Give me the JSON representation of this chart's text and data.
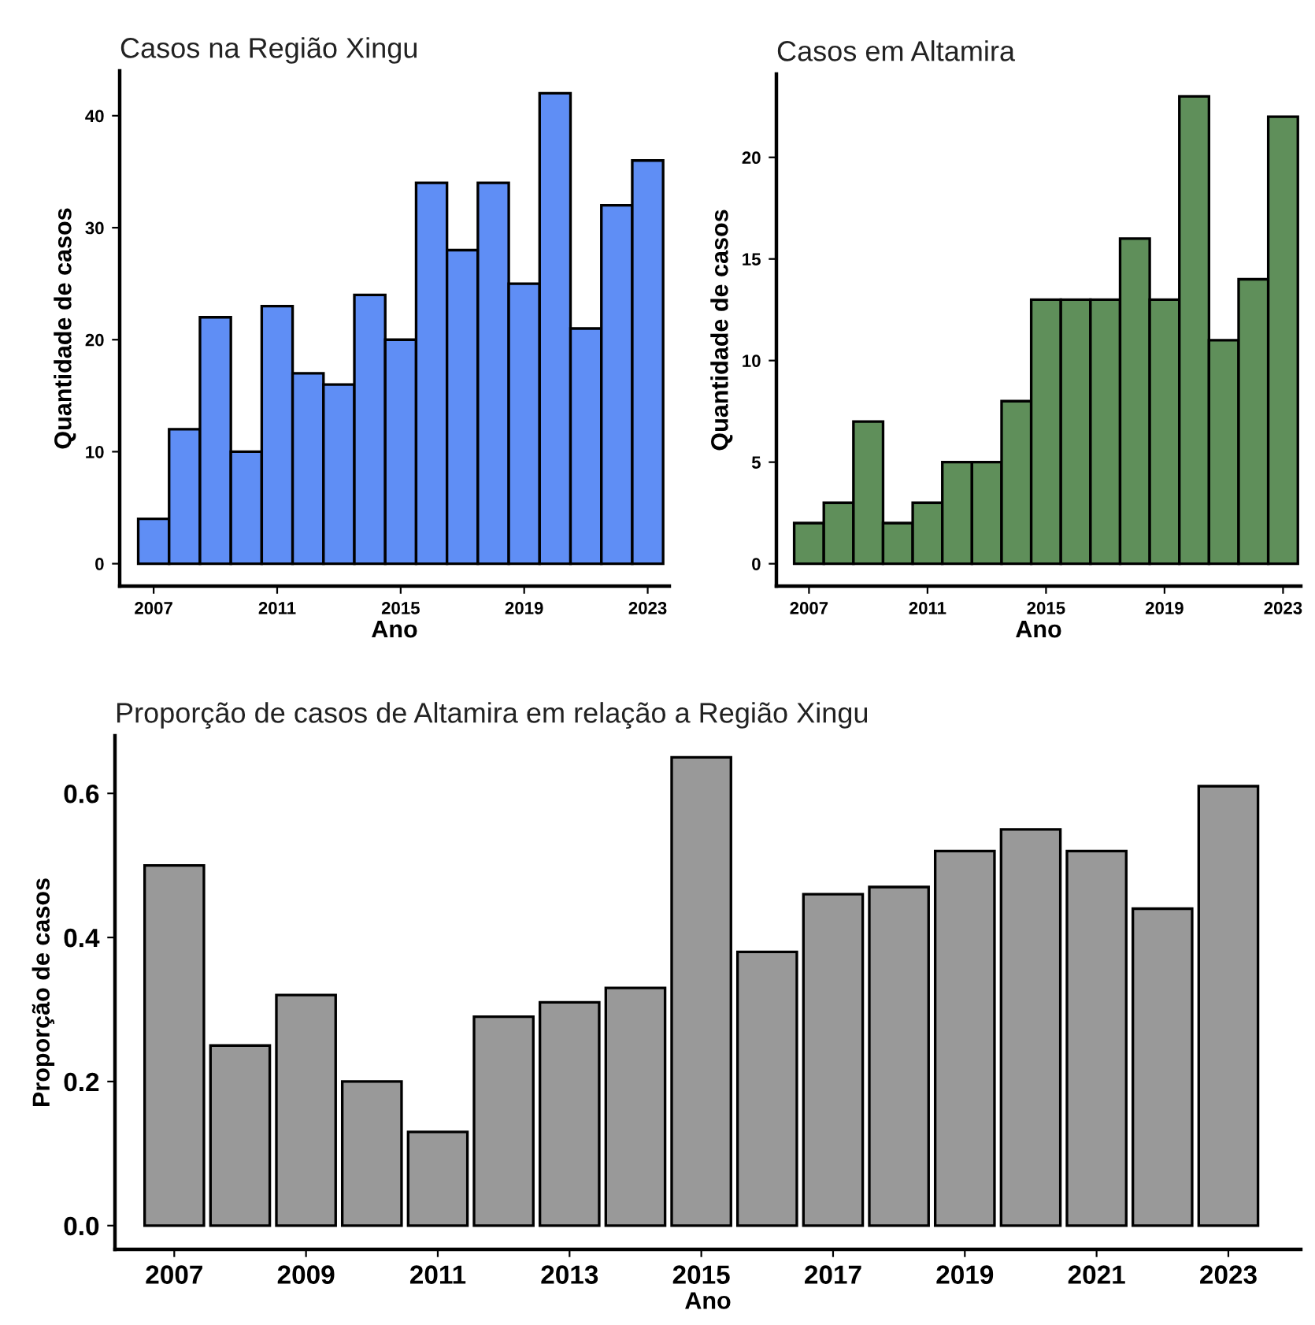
{
  "chart_data": [
    {
      "type": "bar",
      "title": "Casos na Região Xingu",
      "xlabel": "Ano",
      "ylabel": "Quantidade de casos",
      "x": [
        2007,
        2008,
        2009,
        2010,
        2011,
        2012,
        2013,
        2014,
        2015,
        2016,
        2017,
        2018,
        2019,
        2020,
        2021,
        2022,
        2023
      ],
      "values": [
        4,
        12,
        22,
        10,
        23,
        17,
        16,
        24,
        20,
        34,
        28,
        34,
        25,
        42,
        21,
        32,
        36
      ],
      "color": "#5f8ef5",
      "xlim": [
        2005.9,
        2023.7
      ],
      "xticks": [
        2007,
        2011,
        2015,
        2019,
        2023
      ],
      "ylim": [
        -2,
        44
      ],
      "yticks": [
        0,
        10,
        20,
        30,
        40
      ],
      "grid": false,
      "legend": false
    },
    {
      "type": "bar",
      "title": "Casos em Altamira",
      "xlabel": "Ano",
      "ylabel": "Quantidade de casos",
      "x": [
        2007,
        2008,
        2009,
        2010,
        2011,
        2012,
        2013,
        2014,
        2015,
        2016,
        2017,
        2018,
        2019,
        2020,
        2021,
        2022,
        2023
      ],
      "values": [
        2,
        3,
        7,
        2,
        3,
        5,
        5,
        8,
        13,
        13,
        13,
        16,
        13,
        23,
        11,
        14,
        22
      ],
      "color": "#5f8f5a",
      "xlim": [
        2005.9,
        2023.6
      ],
      "xticks": [
        2007,
        2011,
        2015,
        2019,
        2023
      ],
      "ylim": [
        -1.1,
        24.1
      ],
      "yticks": [
        0,
        5,
        10,
        15,
        20
      ],
      "grid": false,
      "legend": false
    },
    {
      "type": "bar",
      "title": "Proporção de casos de Altamira em relação a Região Xingu",
      "xlabel": "Ano",
      "ylabel": "Proporção de casos",
      "x": [
        2007,
        2008,
        2009,
        2010,
        2011,
        2012,
        2013,
        2014,
        2015,
        2016,
        2017,
        2018,
        2019,
        2020,
        2021,
        2022,
        2023
      ],
      "values": [
        0.5,
        0.25,
        0.32,
        0.2,
        0.13,
        0.29,
        0.31,
        0.33,
        0.65,
        0.38,
        0.46,
        0.47,
        0.52,
        0.55,
        0.52,
        0.44,
        0.61
      ],
      "color": "#999999",
      "xlim": [
        2006.1,
        2024.1
      ],
      "xticks": [
        2007,
        2009,
        2011,
        2013,
        2015,
        2017,
        2019,
        2021,
        2023
      ],
      "ylim": [
        -0.033,
        0.68
      ],
      "yticks": [
        {
          "value": 0,
          "label": "0.0"
        },
        {
          "value": 0.2,
          "label": "0.2"
        },
        {
          "value": 0.4,
          "label": "0.4"
        },
        {
          "value": 0.6,
          "label": "0.6"
        }
      ],
      "grid": false,
      "legend": false
    }
  ]
}
